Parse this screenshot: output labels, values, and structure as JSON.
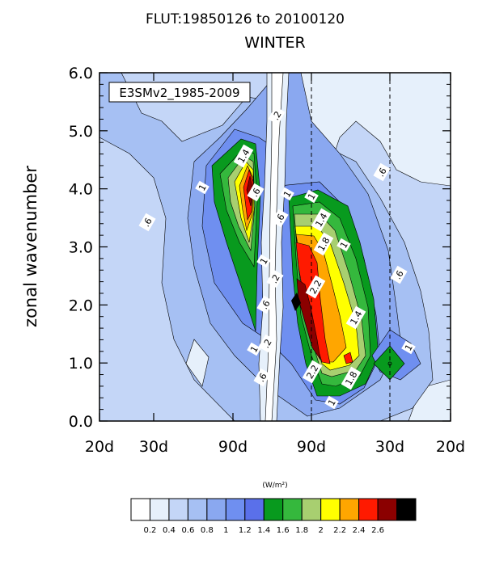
{
  "chart_data": {
    "type": "heatmap",
    "title": "FLUT:19850126 to 20100120",
    "subtitle": "WINTER",
    "annotation": "E3SMv2_1985-2009",
    "xlabel": "",
    "ylabel": "zonal wavenumber",
    "ylim": [
      0.0,
      6.0
    ],
    "y_ticks": [
      "0.0",
      "1.0",
      "2.0",
      "3.0",
      "4.0",
      "5.0",
      "6.0"
    ],
    "x_tick_labels": [
      "20d",
      "30d",
      "90d",
      "90d",
      "30d",
      "20d"
    ],
    "colorbar_unit": "(W/m²)",
    "colorbar_levels": [
      "0.2",
      "0.4",
      "0.6",
      "0.8",
      "1",
      "1.2",
      "1.4",
      "1.6",
      "1.8",
      "2",
      "2.2",
      "2.4",
      "2.6"
    ],
    "colorbar_colors": [
      "#ffffff",
      "#e6f0fb",
      "#c4d6f7",
      "#a6c0f3",
      "#8aa8f0",
      "#6f8ff0",
      "#5a70ea",
      "#089a1e",
      "#35b83d",
      "#a8cf70",
      "#ffff00",
      "#ffa600",
      "#ff1a00",
      "#8b0000",
      "#000000"
    ],
    "contour_labels": [
      ".6",
      ".2",
      "1.4",
      "1",
      ".6",
      "1",
      "1",
      ".6",
      ".6",
      "1.4",
      "1.8",
      "1",
      "2.2",
      ".6",
      ".2",
      "1",
      "1.4",
      ".6",
      "1",
      ".2",
      "1",
      ".6",
      "2.2",
      "1.8",
      "1"
    ],
    "dashed_lines_frequency": [
      "90d",
      "30d"
    ],
    "legend_placement": "top-left",
    "grid": false
  }
}
